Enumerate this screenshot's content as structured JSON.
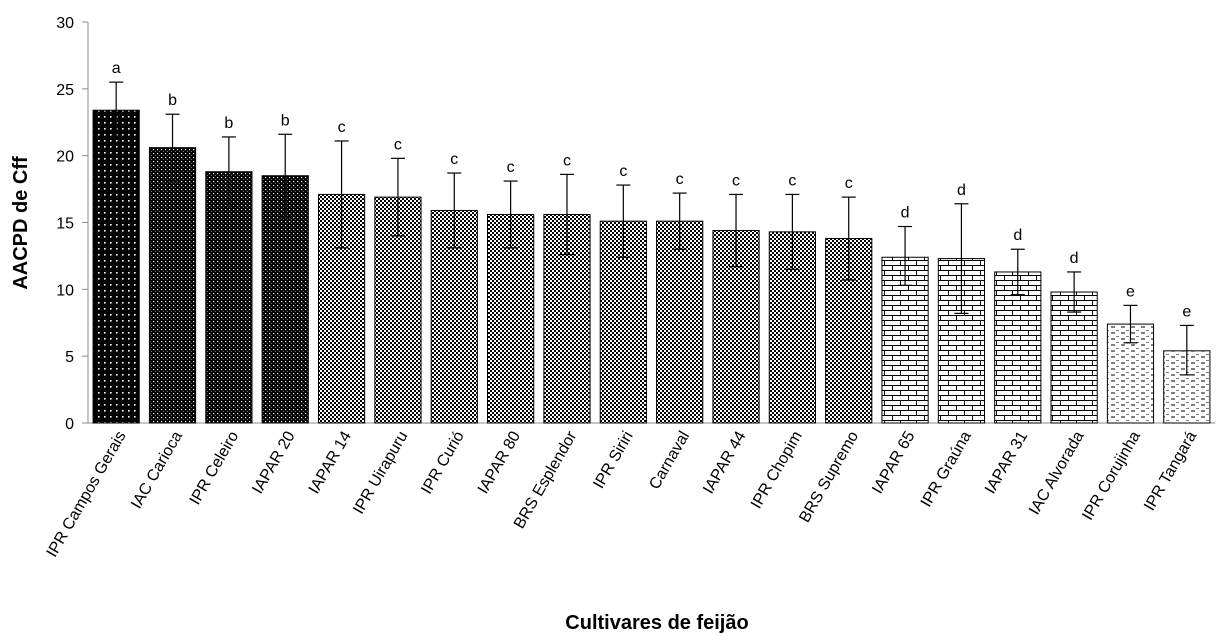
{
  "chart_data": {
    "type": "bar",
    "xlabel": "Cultivares de feijão",
    "ylabel": "AACPD de Cff",
    "ylim": [
      0,
      30
    ],
    "yticks": [
      0,
      5,
      10,
      15,
      20,
      25,
      30
    ],
    "grid": false,
    "legend": "none",
    "categories": [
      "IPR Campos Gerais",
      "IAC Carioca",
      "IPR Celeiro",
      "IAPAR 20",
      "IAPAR 14",
      "IPR Uirapuru",
      "IPR Curió",
      "IAPAR 80",
      "BRS Esplendor",
      "IPR Siriri",
      "Carnaval",
      "IAPAR 44",
      "IPR Chopim",
      "BRS Supremo",
      "IAPAR 65",
      "IPR Graúna",
      "IAPAR 31",
      "IAC Alvorada",
      "IPR Corujinha",
      "IPR Tangará"
    ],
    "values": [
      23.4,
      20.6,
      18.8,
      18.5,
      17.1,
      16.9,
      15.9,
      15.6,
      15.6,
      15.1,
      15.1,
      14.4,
      14.3,
      13.8,
      12.4,
      12.3,
      11.3,
      9.8,
      7.4,
      5.4
    ],
    "error_upper": [
      25.5,
      23.1,
      21.4,
      21.6,
      21.1,
      19.8,
      18.7,
      18.1,
      18.6,
      17.8,
      17.2,
      17.1,
      17.1,
      16.9,
      14.7,
      16.4,
      13.0,
      11.3,
      8.8,
      7.3
    ],
    "error_lower": [
      21.4,
      18.1,
      16.2,
      15.4,
      13.1,
      14.0,
      13.1,
      13.1,
      12.6,
      12.4,
      13.0,
      11.7,
      11.5,
      10.7,
      10.3,
      8.2,
      9.6,
      8.3,
      6.0,
      3.6
    ],
    "letters": [
      "a",
      "b",
      "b",
      "b",
      "c",
      "c",
      "c",
      "c",
      "c",
      "c",
      "c",
      "c",
      "c",
      "c",
      "d",
      "d",
      "d",
      "d",
      "e",
      "e"
    ],
    "patterns": [
      "dots",
      "dense-dots",
      "dense-dots",
      "dense-dots",
      "checker",
      "checker",
      "checker",
      "checker",
      "checker",
      "checker",
      "checker",
      "checker",
      "checker",
      "checker",
      "brick",
      "brick",
      "brick",
      "brick",
      "dashes",
      "dashes"
    ]
  }
}
